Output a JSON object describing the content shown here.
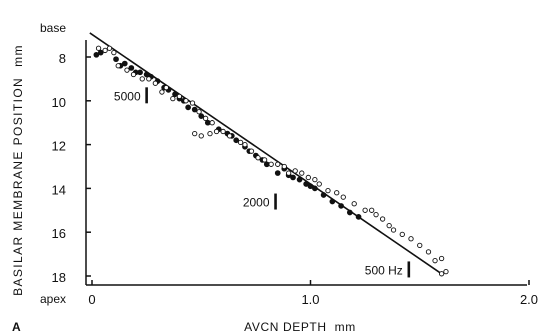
{
  "panel_letter": "A",
  "chart_data": {
    "type": "scatter",
    "xlabel": "AVCN DEPTH",
    "xunit": "mm",
    "ylabel": "BASILAR MEMBRANE POSITION",
    "yunit": "mm",
    "y_top_label": "base",
    "y_bottom_label": "apex",
    "xlim": [
      0,
      2.0
    ],
    "ylim": [
      6.7,
      18.3
    ],
    "y_inverted": true,
    "x_ticks": [
      {
        "value": 0,
        "label": "0"
      },
      {
        "value": 1.0,
        "label": "1.0"
      },
      {
        "value": 2.0,
        "label": "2.0"
      }
    ],
    "y_ticks": [
      {
        "value": 8,
        "label": "8"
      },
      {
        "value": 10,
        "label": "10"
      },
      {
        "value": 12,
        "label": "12"
      },
      {
        "value": 14,
        "label": "14"
      },
      {
        "value": 16,
        "label": "16"
      },
      {
        "value": 18,
        "label": "18"
      }
    ],
    "fit_line": {
      "x": [
        -0.01,
        1.6
      ],
      "y": [
        6.9,
        17.9
      ]
    },
    "frequency_markers": [
      {
        "label": "5000",
        "x": 0.25,
        "y": 9.75
      },
      {
        "label": "2000",
        "x": 0.84,
        "y": 14.6
      },
      {
        "label": "500 Hz",
        "x": 1.45,
        "y": 17.7
      }
    ],
    "series": [
      {
        "marker": "filled",
        "points": [
          [
            0.02,
            7.9
          ],
          [
            0.04,
            7.8
          ],
          [
            0.11,
            8.1
          ],
          [
            0.13,
            8.4
          ],
          [
            0.15,
            8.3
          ],
          [
            0.18,
            8.5
          ],
          [
            0.2,
            8.7
          ],
          [
            0.22,
            8.7
          ],
          [
            0.25,
            8.8
          ],
          [
            0.27,
            8.9
          ],
          [
            0.3,
            9.1
          ],
          [
            0.33,
            9.4
          ],
          [
            0.35,
            9.5
          ],
          [
            0.38,
            9.7
          ],
          [
            0.4,
            9.9
          ],
          [
            0.42,
            10.0
          ],
          [
            0.44,
            10.3
          ],
          [
            0.47,
            10.4
          ],
          [
            0.5,
            10.7
          ],
          [
            0.53,
            11.0
          ],
          [
            0.58,
            11.3
          ],
          [
            0.62,
            11.5
          ],
          [
            0.64,
            11.6
          ],
          [
            0.66,
            11.8
          ],
          [
            0.7,
            12.1
          ],
          [
            0.72,
            12.3
          ],
          [
            0.75,
            12.5
          ],
          [
            0.78,
            12.7
          ],
          [
            0.8,
            12.9
          ],
          [
            0.85,
            13.3
          ],
          [
            0.88,
            13.1
          ],
          [
            0.9,
            13.4
          ],
          [
            0.92,
            13.5
          ],
          [
            0.95,
            13.6
          ],
          [
            0.98,
            13.8
          ],
          [
            1.0,
            13.9
          ],
          [
            1.02,
            14.0
          ],
          [
            1.06,
            14.3
          ],
          [
            1.1,
            14.6
          ],
          [
            1.14,
            14.8
          ],
          [
            1.18,
            15.1
          ],
          [
            1.22,
            15.3
          ]
        ]
      },
      {
        "marker": "open",
        "points": [
          [
            0.03,
            7.6
          ],
          [
            0.06,
            7.7
          ],
          [
            0.08,
            7.6
          ],
          [
            0.1,
            7.8
          ],
          [
            0.12,
            8.4
          ],
          [
            0.16,
            8.6
          ],
          [
            0.19,
            8.8
          ],
          [
            0.23,
            9.0
          ],
          [
            0.26,
            9.0
          ],
          [
            0.29,
            9.2
          ],
          [
            0.32,
            9.6
          ],
          [
            0.34,
            9.4
          ],
          [
            0.37,
            9.9
          ],
          [
            0.4,
            9.8
          ],
          [
            0.43,
            10.0
          ],
          [
            0.46,
            10.1
          ],
          [
            0.49,
            10.5
          ],
          [
            0.52,
            10.8
          ],
          [
            0.55,
            11.0
          ],
          [
            0.57,
            11.4
          ],
          [
            0.6,
            11.4
          ],
          [
            0.63,
            11.6
          ],
          [
            0.68,
            11.9
          ],
          [
            0.7,
            12.0
          ],
          [
            0.73,
            12.3
          ],
          [
            0.76,
            12.6
          ],
          [
            0.79,
            12.7
          ],
          [
            0.82,
            12.9
          ],
          [
            0.85,
            12.9
          ],
          [
            0.88,
            13.0
          ],
          [
            0.9,
            13.3
          ],
          [
            0.93,
            13.2
          ],
          [
            0.96,
            13.3
          ],
          [
            0.99,
            13.5
          ],
          [
            1.02,
            13.6
          ],
          [
            1.04,
            13.8
          ],
          [
            1.08,
            14.1
          ],
          [
            1.12,
            14.2
          ],
          [
            1.15,
            14.4
          ],
          [
            1.2,
            14.7
          ],
          [
            1.25,
            15.0
          ],
          [
            1.28,
            15.0
          ],
          [
            1.3,
            15.2
          ],
          [
            1.33,
            15.4
          ],
          [
            1.36,
            15.7
          ],
          [
            1.38,
            15.9
          ],
          [
            1.42,
            16.1
          ],
          [
            1.46,
            16.3
          ],
          [
            1.5,
            16.6
          ],
          [
            1.54,
            16.9
          ],
          [
            1.57,
            17.3
          ],
          [
            1.6,
            17.2
          ],
          [
            1.6,
            17.9
          ],
          [
            1.62,
            17.8
          ],
          [
            0.47,
            11.5
          ],
          [
            0.5,
            11.6
          ],
          [
            0.54,
            11.5
          ]
        ]
      }
    ]
  }
}
